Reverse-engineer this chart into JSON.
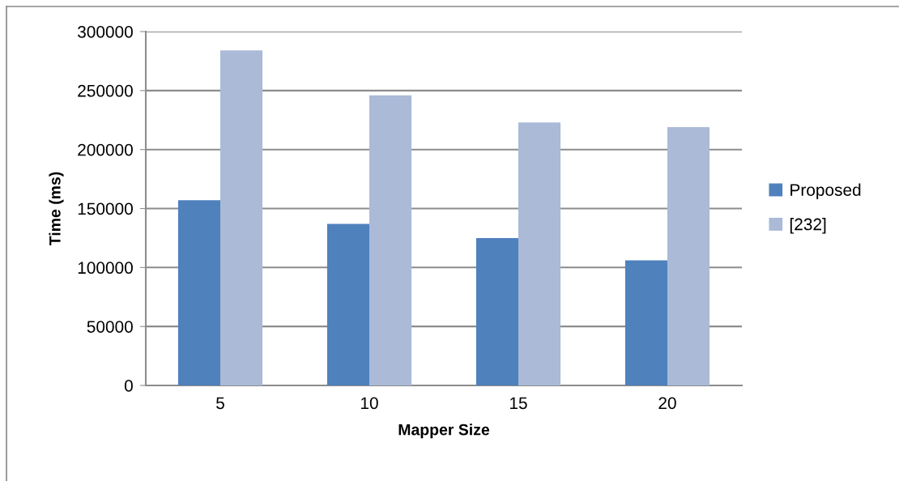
{
  "chart_data": {
    "type": "bar",
    "xlabel": "Mapper Size",
    "ylabel": "Time (ms)",
    "categories": [
      "5",
      "10",
      "15",
      "20"
    ],
    "series": [
      {
        "name": "Proposed",
        "color": "#4f81bd",
        "values": [
          157000,
          137000,
          125000,
          106000
        ]
      },
      {
        "name": "[232]",
        "color": "#aabad7",
        "values": [
          284000,
          246000,
          223000,
          219000
        ]
      }
    ],
    "ylim": [
      0,
      300000
    ],
    "yticks": [
      0,
      50000,
      100000,
      150000,
      200000,
      250000,
      300000
    ],
    "grid": "y",
    "legend": "right"
  }
}
